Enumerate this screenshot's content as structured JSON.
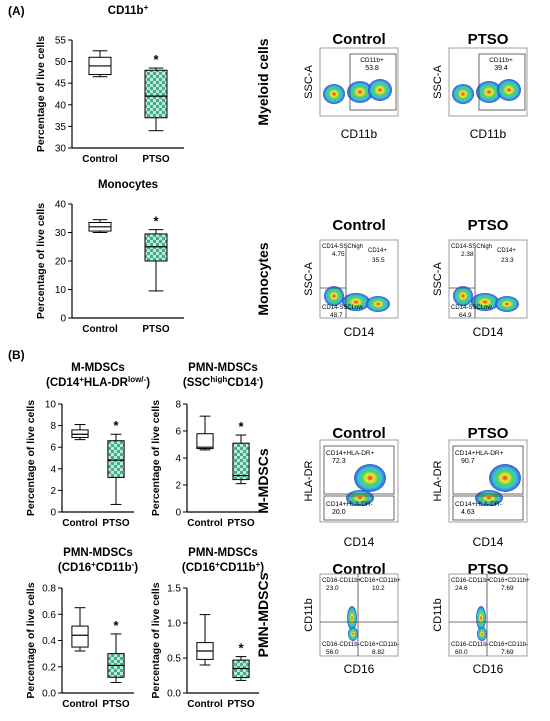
{
  "panel_a_label": "(A)",
  "panel_b_label": "(B)",
  "colors": {
    "control_fill": "#ffffff",
    "ptso_fill": "#3fae8a",
    "ptso_check": "#bfe8d6",
    "axis": "#000000",
    "flow_bg": "#ffffff",
    "flow_blue": "#1f3fbf",
    "flow_cyan": "#34c3e6",
    "flow_green": "#4fd05a",
    "flow_yellow": "#f4e640",
    "flow_red": "#e22b1b"
  },
  "flow": {
    "groups": [
      "Control",
      "PTSO"
    ],
    "rows": [
      {
        "row_label": "Myeloid cells",
        "y_axis": "SSC-A",
        "x_axis": "CD11b",
        "show_titles": true,
        "gates": [
          {
            "lines": [
              "CD11b+",
              "53.8"
            ]
          },
          {
            "lines": [
              "CD11b+",
              "39.4"
            ]
          }
        ]
      },
      {
        "row_label": "Monocytes",
        "y_axis": "SSC-A",
        "x_axis": "CD14",
        "show_titles": true,
        "gates": [
          {
            "lines": [
              "CD14-SSChigh",
              "4.75",
              "CD14+",
              "35.5",
              "CD14-SSCLow",
              "48.7"
            ]
          },
          {
            "lines": [
              "CD14-SSChigh",
              "2.38",
              "CD14+",
              "23.3",
              "CD14-SSCLow",
              "64.9"
            ]
          }
        ]
      },
      {
        "row_label": "M-MDSCs",
        "y_axis": "HLA-DR",
        "x_axis": "CD14",
        "show_titles": true,
        "gates": [
          {
            "lines": [
              "CD14+HLA-DR+",
              "72.3",
              "CD14+HLA-DR-",
              "20.0"
            ]
          },
          {
            "lines": [
              "CD14+HLA-DR+",
              "90.7",
              "CD14+HLA-DR-",
              "4.63"
            ]
          }
        ]
      },
      {
        "row_label": "PMN-MDSCs",
        "y_axis": "CD11b",
        "x_axis": "CD16",
        "show_titles": true,
        "gates": [
          {
            "lines": [
              "CD16-CD11b+",
              "23.0",
              "CD16+CD11b+",
              "10.2",
              "CD16-CD11b-",
              "56.0",
              "CD16+CD11b-",
              "8.82"
            ]
          },
          {
            "lines": [
              "CD16-CD11b+",
              "24.6",
              "CD16+CD11b+",
              "7.69",
              "CD16-CD11b-",
              "60.0",
              "CD16+CD11b-",
              "7.69"
            ]
          }
        ]
      }
    ]
  },
  "chart_data": [
    {
      "type": "box",
      "title_lines": [
        "CD11b+"
      ],
      "ylabel": "Percentage of live cells",
      "ylim": [
        30,
        55
      ],
      "yticks": [
        30,
        35,
        40,
        45,
        50,
        55
      ],
      "categories": [
        "Control",
        "PTSO"
      ],
      "boxes": [
        {
          "min": 46.5,
          "q1": 47.0,
          "median": 49.0,
          "q3": 51.0,
          "max": 52.5
        },
        {
          "min": 34.0,
          "q1": 37.0,
          "median": 42.0,
          "q3": 48.0,
          "max": 48.5
        }
      ],
      "significance": [
        "",
        "*"
      ]
    },
    {
      "type": "box",
      "title_lines": [
        "Monocytes"
      ],
      "ylabel": "Percentage of live cells",
      "ylim": [
        0,
        40
      ],
      "yticks": [
        0,
        10,
        20,
        30,
        40
      ],
      "categories": [
        "Control",
        "PTSO"
      ],
      "boxes": [
        {
          "min": 30.0,
          "q1": 30.5,
          "median": 32.0,
          "q3": 33.5,
          "max": 34.5
        },
        {
          "min": 9.5,
          "q1": 20.0,
          "median": 25.0,
          "q3": 29.5,
          "max": 31.0
        }
      ],
      "significance": [
        "",
        "*"
      ]
    },
    {
      "type": "box",
      "title_lines": [
        "M-MDSCs",
        "(CD14+HLA-DRlow/-)"
      ],
      "ylabel": "Percentage of live cells",
      "ylim": [
        0,
        10
      ],
      "yticks": [
        0,
        2,
        4,
        6,
        8,
        10
      ],
      "categories": [
        "Control",
        "PTSO"
      ],
      "boxes": [
        {
          "min": 6.7,
          "q1": 6.9,
          "median": 7.2,
          "q3": 7.6,
          "max": 8.1
        },
        {
          "min": 0.7,
          "q1": 3.2,
          "median": 4.8,
          "q3": 6.6,
          "max": 7.2
        }
      ],
      "significance": [
        "",
        "*"
      ]
    },
    {
      "type": "box",
      "title_lines": [
        "PMN-MDSCs",
        "(SSChighCD14-)"
      ],
      "ylabel": "Percentage of live cells",
      "ylim": [
        0,
        8
      ],
      "yticks": [
        0,
        2,
        4,
        6,
        8
      ],
      "categories": [
        "Control",
        "PTSO"
      ],
      "boxes": [
        {
          "min": 4.6,
          "q1": 4.7,
          "median": 4.8,
          "q3": 5.8,
          "max": 7.1
        },
        {
          "min": 2.1,
          "q1": 2.4,
          "median": 2.7,
          "q3": 5.1,
          "max": 5.7
        }
      ],
      "significance": [
        "",
        "*"
      ]
    },
    {
      "type": "box",
      "title_lines": [
        "PMN-MDSCs",
        "(CD16+CD11b-)"
      ],
      "ylabel": "Percentage of live cells",
      "ylim": [
        0,
        0.8
      ],
      "yticks": [
        0.0,
        0.2,
        0.4,
        0.6,
        0.8
      ],
      "categories": [
        "Control",
        "PTSO"
      ],
      "boxes": [
        {
          "min": 0.32,
          "q1": 0.35,
          "median": 0.44,
          "q3": 0.51,
          "max": 0.65
        },
        {
          "min": 0.08,
          "q1": 0.12,
          "median": 0.21,
          "q3": 0.3,
          "max": 0.45
        }
      ],
      "significance": [
        "",
        "*"
      ]
    },
    {
      "type": "box",
      "title_lines": [
        "PMN-MDSCs",
        "(CD16+CD11b+)"
      ],
      "ylabel": "Percentage of live cells",
      "ylim": [
        0,
        1.5
      ],
      "yticks": [
        0.0,
        0.5,
        1.0,
        1.5
      ],
      "categories": [
        "Control",
        "PTSO"
      ],
      "boxes": [
        {
          "min": 0.4,
          "q1": 0.48,
          "median": 0.6,
          "q3": 0.72,
          "max": 1.12
        },
        {
          "min": 0.18,
          "q1": 0.22,
          "median": 0.35,
          "q3": 0.47,
          "max": 0.52
        }
      ],
      "significance": [
        "",
        "*"
      ]
    }
  ]
}
